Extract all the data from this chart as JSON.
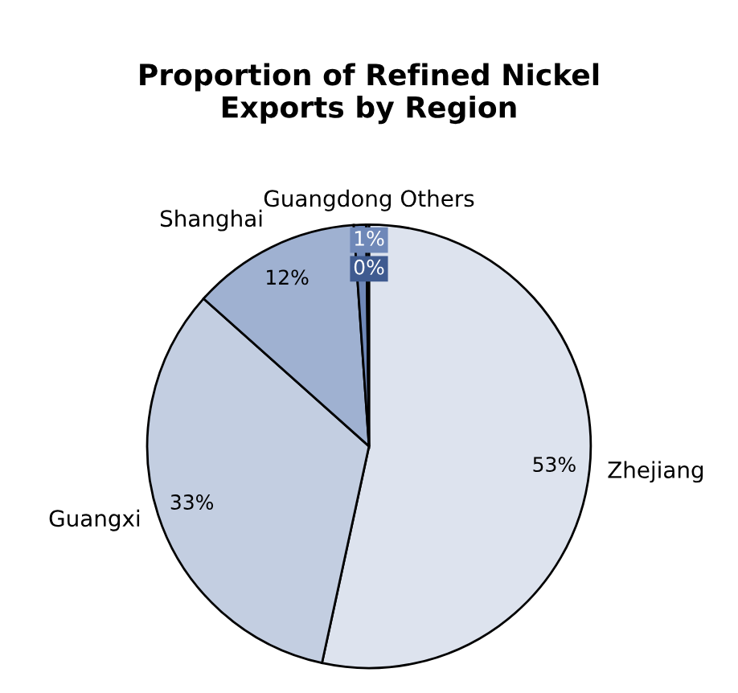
{
  "chart_data": {
    "type": "pie",
    "title": "Proportion of Refined Nickel\nExports by Region",
    "categories": [
      "Zhejiang",
      "Guangxi",
      "Shanghai",
      "Guangdong",
      "Others"
    ],
    "values": [
      53.4,
      33.2,
      12.3,
      0.9,
      0.2
    ],
    "value_labels": [
      "53%",
      "33%",
      "12%",
      "1%",
      "0%"
    ],
    "colors": [
      "#dde3ee",
      "#c3cee1",
      "#9fb1d1",
      "#6f88b8",
      "#3f5b90"
    ],
    "legend": false
  }
}
